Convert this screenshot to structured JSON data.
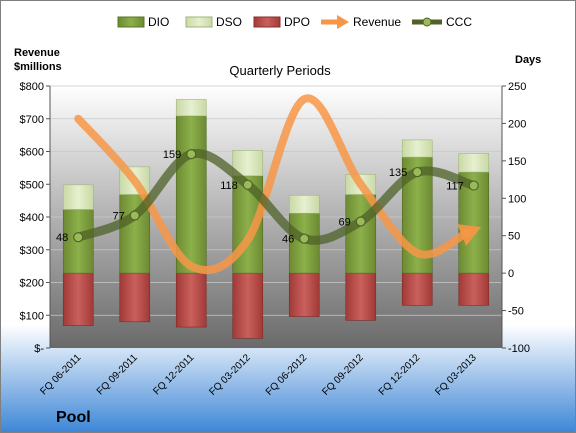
{
  "chart_data": {
    "type": "bar",
    "title": "Quarterly Periods",
    "company": "Pool",
    "left_axis": {
      "label_line1": "Revenue",
      "label_line2": "$millions",
      "ylim": [
        0,
        800
      ],
      "ticks": [
        0,
        100,
        200,
        300,
        400,
        500,
        600,
        700,
        800
      ],
      "tick_labels": [
        "$-",
        "$100",
        "$200",
        "$300",
        "$400",
        "$500",
        "$600",
        "$700",
        "$800"
      ]
    },
    "right_axis": {
      "label": "Days",
      "ylim": [
        -100,
        250
      ],
      "ticks": [
        -100,
        -50,
        0,
        50,
        100,
        150,
        200,
        250
      ],
      "tick_labels": [
        "-100",
        "-50",
        "0",
        "50",
        "100",
        "150",
        "200",
        "250"
      ]
    },
    "categories": [
      "FQ 06-2011",
      "FQ 09-2011",
      "FQ 12-2011",
      "FQ 03-2012",
      "FQ 06-2012",
      "FQ 09-2012",
      "FQ 12-2012",
      "FQ 03-2013"
    ],
    "legend": [
      "DIO",
      "DSO",
      "DPO",
      "Revenue",
      "CCC"
    ],
    "legend_position": "top",
    "series": [
      {
        "name": "DIO",
        "axis": "right",
        "color": "#77933c",
        "values": [
          85,
          105,
          210,
          130,
          80,
          105,
          155,
          135
        ]
      },
      {
        "name": "DSO",
        "axis": "right",
        "color": "#d7e4bd",
        "values": [
          33,
          37,
          22,
          34,
          24,
          27,
          23,
          25
        ]
      },
      {
        "name": "DPO",
        "axis": "right",
        "color": "#c0504d",
        "values": [
          -70,
          -65,
          -72,
          -87,
          -58,
          -63,
          -43,
          -43
        ]
      },
      {
        "name": "Revenue",
        "axis": "left",
        "color": "#f79646",
        "values": [
          700,
          510,
          250,
          330,
          760,
          500,
          290,
          360
        ]
      },
      {
        "name": "CCC",
        "axis": "right",
        "color": "#4f6228",
        "values": [
          48,
          77,
          159,
          118,
          46,
          69,
          135,
          117
        ]
      }
    ],
    "ccc_labels": [
      "48",
      "77",
      "159",
      "118",
      "46",
      "69",
      "135",
      "117"
    ]
  }
}
